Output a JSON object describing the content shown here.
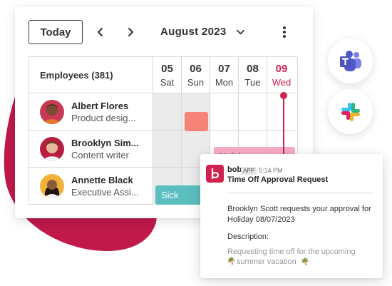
{
  "toolbar": {
    "today_label": "Today",
    "month": "August 2023"
  },
  "grid": {
    "employees_header": "Employees (381)",
    "days": [
      {
        "num": "05",
        "dow": "Sat",
        "weekend": true
      },
      {
        "num": "06",
        "dow": "Sun",
        "weekend": true
      },
      {
        "num": "07",
        "dow": "Mon",
        "weekend": false
      },
      {
        "num": "08",
        "dow": "Tue",
        "weekend": false
      },
      {
        "num": "09",
        "dow": "Wed",
        "weekend": false,
        "today": true
      }
    ],
    "employees": [
      {
        "name": "Albert Flores",
        "role": "Product desig..."
      },
      {
        "name": "Brooklyn Sim...",
        "role": "Content writer"
      },
      {
        "name": "Annette Black",
        "role": "Executive Assi..."
      }
    ],
    "events": {
      "holiday": "Holiday",
      "sick": "Sick"
    }
  },
  "colors": {
    "brand": "#d0224f",
    "salmon_event": "#f68378",
    "holiday_event": "#f8aac5",
    "sick_event": "#5bbfbf",
    "weekend": "#ebebeb"
  },
  "integrations": {
    "teams_icon": "microsoft-teams-icon",
    "slack_icon": "slack-icon"
  },
  "notification": {
    "sender": "bob",
    "badge": "APP",
    "time": "5:14 PM",
    "title": "Time Off Approval Request",
    "body": "Brooklyn Scott requests your approval for Holiday 08/07/2023",
    "description_label": "Description:",
    "description_line1": "Requesting time off for the upcoming",
    "description_line2": "summer vacation",
    "emoji": "🌴"
  }
}
